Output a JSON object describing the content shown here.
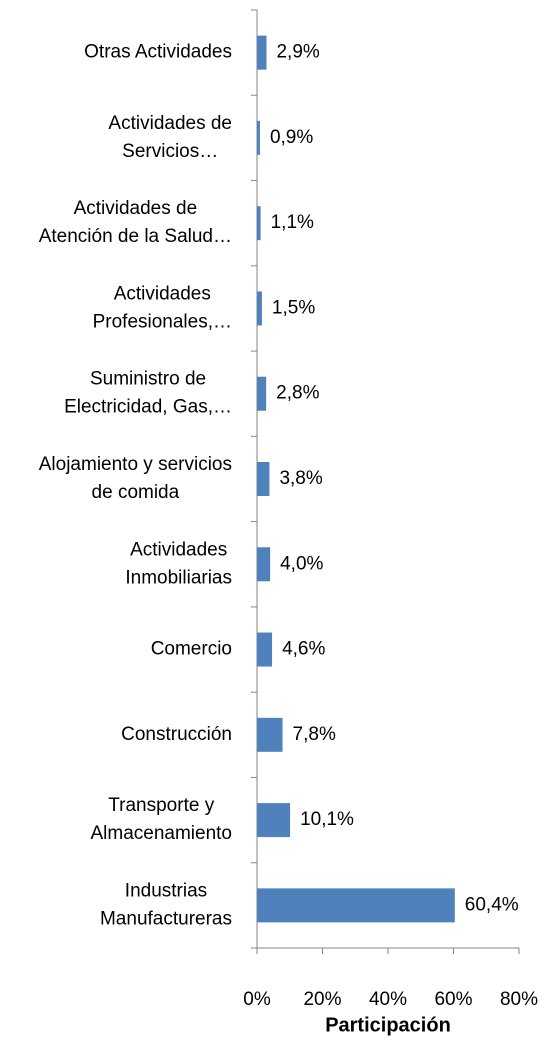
{
  "chart_data": {
    "type": "hbar",
    "x_label": "Participación",
    "categories": [
      "Otras Actividades",
      "Actividades de Servicios…",
      "Actividades de Atención de la Salud…",
      "Actividades Profesionales,…",
      "Suministro de Electricidad, Gas,…",
      "Alojamiento y servicios de comida",
      "Actividades Inmobiliarias",
      "Comercio",
      "Construcción",
      "Transporte y Almacenamiento",
      "Industrias Manufactureras"
    ],
    "values": [
      2.9,
      0.9,
      1.1,
      1.5,
      2.8,
      3.8,
      4.0,
      4.6,
      7.8,
      10.1,
      60.4
    ],
    "value_labels": [
      "2,9%",
      "0,9%",
      "1,1%",
      "1,5%",
      "2,8%",
      "3,8%",
      "4,0%",
      "4,6%",
      "7,8%",
      "10,1%",
      "60,4%"
    ],
    "color": "#4f81bd",
    "xlim": [
      0,
      80
    ],
    "xticks": [
      {
        "value": 0,
        "label": "0%"
      },
      {
        "value": 20,
        "label": "20%"
      },
      {
        "value": 40,
        "label": "40%"
      },
      {
        "value": 60,
        "label": "60%"
      },
      {
        "value": 80,
        "label": "80%"
      }
    ],
    "grid": false
  }
}
